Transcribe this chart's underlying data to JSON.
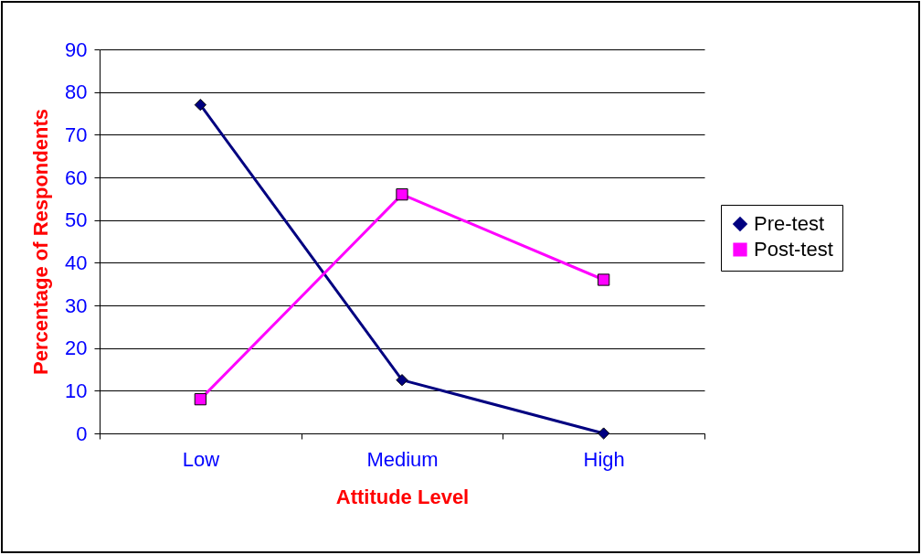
{
  "chart_data": {
    "type": "line",
    "xlabel": "Attitude Level",
    "ylabel": "Percentage of Respondents",
    "categories": [
      "Low",
      "Medium",
      "High"
    ],
    "series": [
      {
        "name": "Pre-test",
        "color": "#000080",
        "marker": "diamond",
        "values": [
          77,
          12.5,
          0
        ]
      },
      {
        "name": "Post-test",
        "color": "#ff00ff",
        "marker": "square",
        "values": [
          8,
          56,
          36
        ]
      }
    ],
    "ylim": [
      0,
      90
    ],
    "yticks": [
      0,
      10,
      20,
      30,
      40,
      50,
      60,
      70,
      80,
      90
    ],
    "grid": "y",
    "legend": "right",
    "line_style": "solid"
  }
}
